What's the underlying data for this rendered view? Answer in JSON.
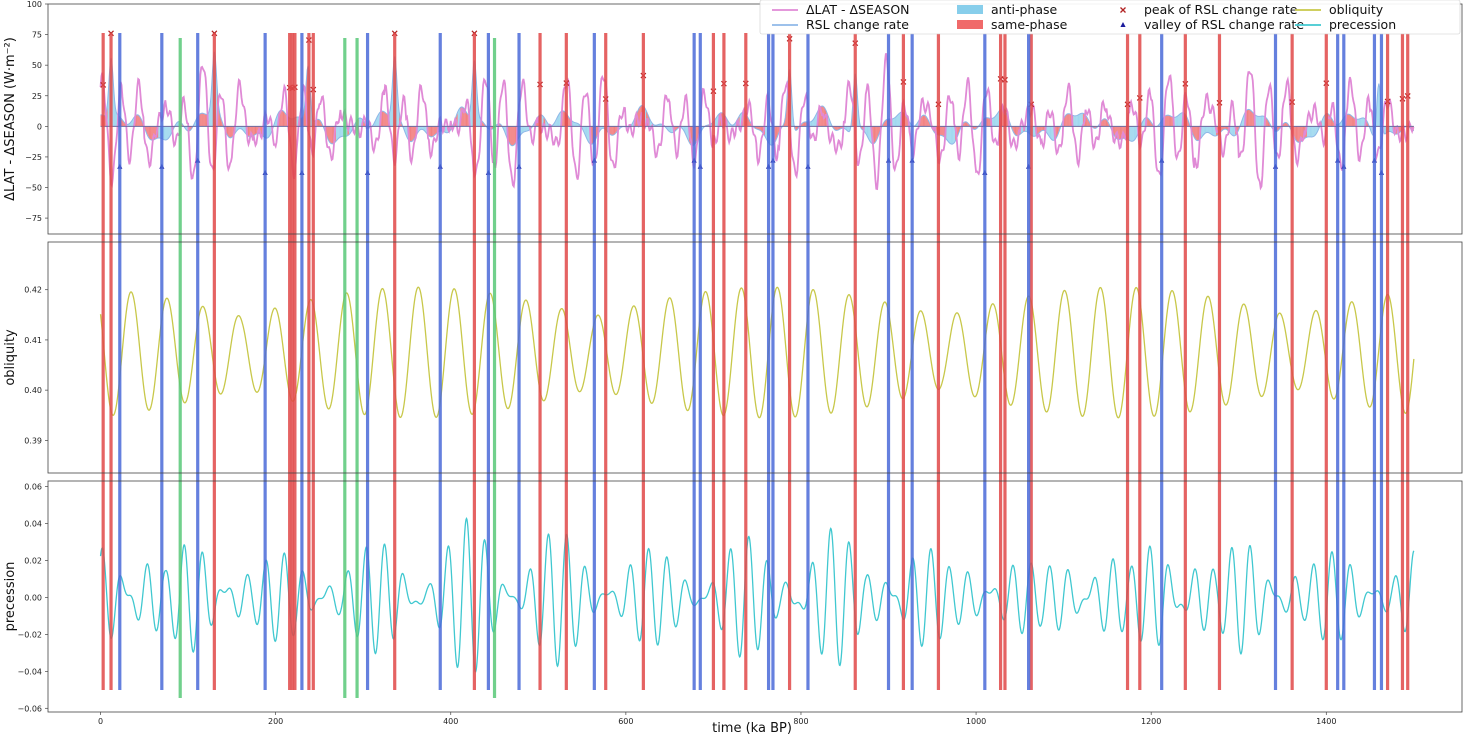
{
  "chart_data": {
    "type": "line",
    "xlabel": "time (ka BP)",
    "xlim": [
      -60,
      1555
    ],
    "x_ticks": [
      0,
      200,
      400,
      600,
      800,
      1000,
      1200,
      1400
    ],
    "x_tick_labels": [
      "0",
      "200",
      "400",
      "600",
      "800",
      "1000",
      "1200",
      "1400"
    ],
    "panels": [
      {
        "name": "top",
        "ylabel": "ΔLAT - ΔSEASON  (W·m⁻²)",
        "ylim": [
          -88,
          100
        ],
        "y_ticks": [
          -75,
          -50,
          -25,
          0,
          25,
          50,
          75,
          100
        ],
        "y_tick_labels": [
          "−75",
          "−50",
          "−25",
          "0",
          "25",
          "50",
          "75",
          "100"
        ],
        "series": [
          {
            "name": "ΔLAT - ΔSEASON",
            "color": "#e08ad6",
            "periods_ka": [
              23,
              19,
              41
            ],
            "amplitudes": [
              22,
              16,
              10
            ],
            "noise_amp": 6
          },
          {
            "name": "RSL change rate",
            "color": "#8fb8e8",
            "periods_ka": [
              100,
              41,
              23
            ],
            "amplitudes": [
              10,
              5,
              4
            ]
          }
        ],
        "fills": [
          {
            "name": "anti-phase",
            "color": "#87ceeb"
          },
          {
            "name": "same-phase",
            "color": "#f06a6a"
          }
        ],
        "markers": [
          {
            "name": "peak of RSL change rate",
            "color": "#b22222",
            "symbol": "x"
          },
          {
            "name": "valley of RSL change rate",
            "color": "#1a1a9c",
            "symbol": "^"
          }
        ]
      },
      {
        "name": "middle",
        "ylabel": "obliquity",
        "ylim": [
          0.3835,
          0.4295
        ],
        "y_ticks": [
          0.39,
          0.4,
          0.41,
          0.42
        ],
        "y_tick_labels": [
          "0.39",
          "0.40",
          "0.41",
          "0.42"
        ],
        "series": [
          {
            "name": "obliquity",
            "color": "#c8c84a",
            "period_ka": 41,
            "mean": 0.4075,
            "amplitude": 0.013,
            "modulation_period_ka": 400
          }
        ]
      },
      {
        "name": "bottom",
        "ylabel": "precession",
        "ylim": [
          -0.062,
          0.063
        ],
        "y_ticks": [
          -0.06,
          -0.04,
          -0.02,
          0.0,
          0.02,
          0.04,
          0.06
        ],
        "y_tick_labels": [
          "−0.06",
          "−0.04",
          "−0.02",
          "0.00",
          "0.02",
          "0.04",
          "0.06"
        ],
        "series": [
          {
            "name": "precession",
            "color": "#40c8d0",
            "periods_ka": [
              23,
              19
            ],
            "amplitude": 0.04,
            "modulation_period_ka": 100
          }
        ]
      }
    ],
    "vertical_lines": {
      "red": [
        3,
        12,
        130,
        216,
        219,
        222,
        238,
        243,
        336,
        427,
        502,
        532,
        577,
        620,
        700,
        712,
        737,
        787,
        862,
        917,
        957,
        1028,
        1033,
        1063,
        1173,
        1187,
        1239,
        1278,
        1361,
        1400,
        1470,
        1487,
        1493
      ],
      "blue": [
        22,
        70,
        111,
        188,
        230,
        305,
        388,
        443,
        478,
        564,
        678,
        685,
        763,
        768,
        808,
        900,
        927,
        1010,
        1060,
        1212,
        1342,
        1413,
        1420,
        1455,
        1463
      ],
      "green": [
        91,
        279,
        293,
        450
      ]
    },
    "legend": {
      "placement": "top-right",
      "entries": [
        {
          "label": "ΔLAT - ΔSEASON",
          "kind": "line",
          "color": "#e08ad6"
        },
        {
          "label": "RSL change rate",
          "kind": "line",
          "color": "#8fb8e8"
        },
        {
          "label": "anti-phase",
          "kind": "patch",
          "color": "#87ceeb"
        },
        {
          "label": "same-phase",
          "kind": "patch",
          "color": "#f06a6a"
        },
        {
          "label": "peak of RSL change rate",
          "kind": "x-marker",
          "color": "#b22222"
        },
        {
          "label": "valley of RSL change rate",
          "kind": "triangle-marker",
          "color": "#1a1a9c"
        },
        {
          "label": "obliquity",
          "kind": "line",
          "color": "#c8c84a"
        },
        {
          "label": "precession",
          "kind": "line",
          "color": "#40c8d0"
        }
      ]
    }
  }
}
